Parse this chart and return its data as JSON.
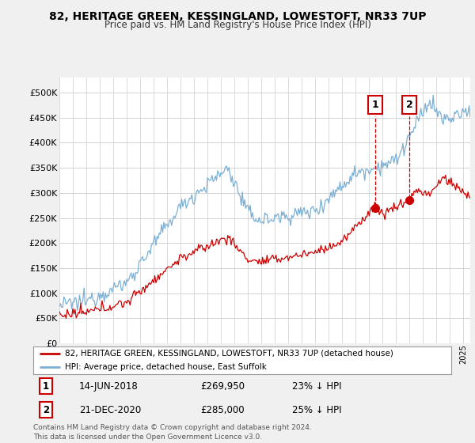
{
  "title": "82, HERITAGE GREEN, KESSINGLAND, LOWESTOFT, NR33 7UP",
  "subtitle": "Price paid vs. HM Land Registry's House Price Index (HPI)",
  "legend_line1": "82, HERITAGE GREEN, KESSINGLAND, LOWESTOFT, NR33 7UP (detached house)",
  "legend_line2": "HPI: Average price, detached house, East Suffolk",
  "footnote": "Contains HM Land Registry data © Crown copyright and database right 2024.\nThis data is licensed under the Open Government Licence v3.0.",
  "annotation1_label": "1",
  "annotation1_date": "14-JUN-2018",
  "annotation1_price": "£269,950",
  "annotation1_hpi": "23% ↓ HPI",
  "annotation2_label": "2",
  "annotation2_date": "21-DEC-2020",
  "annotation2_price": "£285,000",
  "annotation2_hpi": "25% ↓ HPI",
  "sale1_x": 2018.45,
  "sale1_y": 269950,
  "sale2_x": 2020.97,
  "sale2_y": 285000,
  "hpi_color": "#7bafd4",
  "price_color": "#cc0000",
  "background_color": "#f0f0f0",
  "plot_bg_color": "#ffffff",
  "ylim_min": 0,
  "ylim_max": 530000,
  "xlim_min": 1995.0,
  "xlim_max": 2025.5,
  "yticks": [
    0,
    50000,
    100000,
    150000,
    200000,
    250000,
    300000,
    350000,
    400000,
    450000,
    500000
  ],
  "ytick_labels": [
    "£0",
    "£50K",
    "£100K",
    "£150K",
    "£200K",
    "£250K",
    "£300K",
    "£350K",
    "£400K",
    "£450K",
    "£500K"
  ]
}
